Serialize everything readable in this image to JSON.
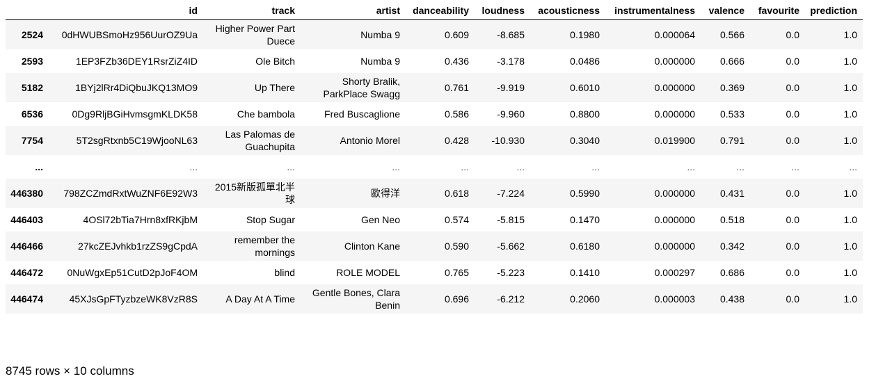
{
  "table": {
    "columns": [
      "",
      "id",
      "track",
      "artist",
      "danceability",
      "loudness",
      "acousticness",
      "instrumentalness",
      "valence",
      "favourite",
      "prediction"
    ],
    "rows": [
      {
        "index": "2524",
        "cells": [
          "0dHWUBSmoHz956UurOZ9Ua",
          "Higher Power Part Duece",
          "Numba 9",
          "0.609",
          "-8.685",
          "0.1980",
          "0.000064",
          "0.566",
          "0.0",
          "1.0"
        ]
      },
      {
        "index": "2593",
        "cells": [
          "1EP3FZb36DEY1RsrZiZ4ID",
          "Ole Bitch",
          "Numba 9",
          "0.436",
          "-3.178",
          "0.0486",
          "0.000000",
          "0.666",
          "0.0",
          "1.0"
        ]
      },
      {
        "index": "5182",
        "cells": [
          "1BYj2lRr4DiQbuJKQ13MO9",
          "Up There",
          "Shorty Bralik, ParkPlace Swagg",
          "0.761",
          "-9.919",
          "0.6010",
          "0.000000",
          "0.369",
          "0.0",
          "1.0"
        ]
      },
      {
        "index": "6536",
        "cells": [
          "0Dg9RljBGiHvmsgmKLDK58",
          "Che bambola",
          "Fred Buscaglione",
          "0.586",
          "-9.960",
          "0.8800",
          "0.000000",
          "0.533",
          "0.0",
          "1.0"
        ]
      },
      {
        "index": "7754",
        "cells": [
          "5T2sgRtxnb5C19WjooNL63",
          "Las Palomas de Guachupita",
          "Antonio Morel",
          "0.428",
          "-10.930",
          "0.3040",
          "0.019900",
          "0.791",
          "0.0",
          "1.0"
        ]
      },
      {
        "index": "...",
        "cells": [
          "...",
          "...",
          "...",
          "...",
          "...",
          "...",
          "...",
          "...",
          "...",
          "..."
        ]
      },
      {
        "index": "446380",
        "cells": [
          "798ZCZmdRxtWuZNF6E92W3",
          "2015新版孤單北半球",
          "歐得洋",
          "0.618",
          "-7.224",
          "0.5990",
          "0.000000",
          "0.431",
          "0.0",
          "1.0"
        ]
      },
      {
        "index": "446403",
        "cells": [
          "4OSl72bTia7Hrn8xfRKjbM",
          "Stop Sugar",
          "Gen Neo",
          "0.574",
          "-5.815",
          "0.1470",
          "0.000000",
          "0.518",
          "0.0",
          "1.0"
        ]
      },
      {
        "index": "446466",
        "cells": [
          "27kcZEJvhkb1rzZS9gCpdA",
          "remember the mornings",
          "Clinton Kane",
          "0.590",
          "-5.662",
          "0.6180",
          "0.000000",
          "0.342",
          "0.0",
          "1.0"
        ]
      },
      {
        "index": "446472",
        "cells": [
          "0NuWgxEp51CutD2pJoF4OM",
          "blind",
          "ROLE MODEL",
          "0.765",
          "-5.223",
          "0.1410",
          "0.000297",
          "0.686",
          "0.0",
          "1.0"
        ]
      },
      {
        "index": "446474",
        "cells": [
          "45XJsGpFTyzbzeWK8VzR8S",
          "A Day At A Time",
          "Gentle Bones, Clara Benin",
          "0.696",
          "-6.212",
          "0.2060",
          "0.000003",
          "0.438",
          "0.0",
          "1.0"
        ]
      }
    ]
  },
  "shape_caption": "8745 rows × 10 columns"
}
